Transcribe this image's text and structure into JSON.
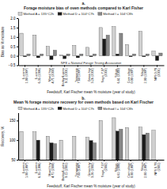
{
  "chart_data": [
    {
      "type": "bar",
      "title": "a.\nForage moisture bias of oven methods compared to Karl Fisher",
      "x_label": "Feedstuff, Karl Fischer mean % moisture (year of study)",
      "y_label": "Bias as % moisture",
      "categories": [
        "Lucerne\n1.90 (1997)",
        "Lucerne\n6.35 (1996)",
        "Mixed hay\n4.71 (2000)",
        "Barley/Lupins\n9.11 (2001)",
        "Temperate\n7.60 (1997)",
        "Grass hay\n3.26 (2002)",
        "Sage, 7.07\n(2002)",
        "Silage,\n6.61 (2000)",
        "Corn silage\n0.90 (1997)",
        "Silage\n2.90 (1997)",
        "NFS 0.78\n(2001)"
      ],
      "series": [
        {
          "name": "Method A = 135°C2h",
          "color": "#d0d0d0",
          "values": [
            1.2,
            1.1,
            0.5,
            0.05,
            0.55,
            0.45,
            1.5,
            1.55,
            0.6,
            1.3,
            0.25
          ]
        },
        {
          "name": "Method D = 104°C7h",
          "color": "#1a1a1a",
          "values": [
            -0.05,
            -0.1,
            -0.2,
            -0.15,
            -0.1,
            -0.05,
            0.9,
            0.1,
            -0.05,
            -0.05,
            -0.25
          ]
        },
        {
          "name": "Method I = 104°C8h",
          "color": "#888888",
          "values": [
            0.1,
            0.1,
            0.3,
            0.1,
            0.1,
            0.1,
            1.1,
            1.2,
            0.1,
            0.1,
            0.15
          ]
        }
      ],
      "ylim": [
        -0.5,
        2.0
      ],
      "yticks": [
        {
          "value": -0.5,
          "label": "−0.5"
        },
        {
          "value": 0,
          "label": "0.0"
        },
        0.5,
        {
          "value": 1,
          "label": "1.0"
        },
        1.5,
        {
          "value": 2,
          "label": "2.0"
        }
      ],
      "legend": "upper left",
      "annotation": "NFS = National Forage Testing Association"
    },
    {
      "type": "bar",
      "title": "b.\nMean % forage moisture recovery for oven methods based on Karl Fischer",
      "x_label": "Feedstuff, Karl Fischer mean % moisture (year of study)",
      "y_label": "Recovery, %",
      "categories": [
        "Lucerne\n1.90 (1997)",
        "Lucerne\n6.35 (1996)",
        "Mixed hay\n4.71 (2000)",
        "Barley/Lupins\n9.11 (2001)",
        "Temperate\n7.60 (1997)",
        "Grass hay\n3.26 (2002)",
        "Sage, 7.07\n(2002)",
        "Silage,\n6.61 (2000)",
        "Corn silage\n0.90 (1997)",
        "Silage\n2.90 (1997)",
        "NFS 0.78\n(2001)"
      ],
      "series": [
        {
          "name": "Method A = 135°C2h",
          "color": "#d0d0d0",
          "values": [
            122,
            121,
            110,
            100,
            110,
            107,
            150,
            157,
            132,
            133,
            125
          ]
        },
        {
          "name": "Method D = 104°C7h",
          "color": "#1a1a1a",
          "values": [
            null,
            100,
            93,
            null,
            null,
            99,
            null,
            123,
            null,
            114,
            null
          ]
        },
        {
          "name": "Method I = 104°C8h",
          "color": "#888888",
          "values": [
            null,
            null,
            91,
            null,
            null,
            93,
            null,
            128,
            null,
            118,
            null
          ]
        }
      ],
      "ylim": [
        50,
        170
      ],
      "yticks": [
        50,
        100,
        150
      ],
      "legend": "upper left"
    }
  ]
}
